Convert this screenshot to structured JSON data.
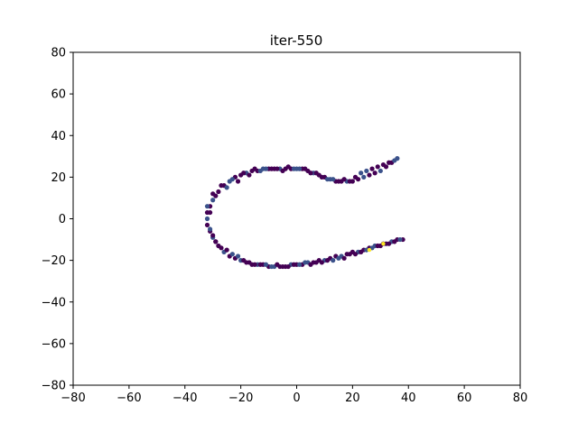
{
  "chart_data": {
    "type": "scatter",
    "title": "iter-550",
    "xlabel": "",
    "ylabel": "",
    "xlim": [
      -80,
      80
    ],
    "ylim": [
      -80,
      80
    ],
    "xticks": [
      -80,
      -60,
      -40,
      -20,
      0,
      20,
      40,
      60,
      80
    ],
    "yticks": [
      -80,
      -60,
      -40,
      -20,
      0,
      20,
      40,
      60,
      80
    ],
    "xtick_labels": [
      "−80",
      "−60",
      "−40",
      "−20",
      "0",
      "20",
      "40",
      "60",
      "80"
    ],
    "ytick_labels": [
      "−80",
      "−60",
      "−40",
      "−20",
      "0",
      "20",
      "40",
      "60",
      "80"
    ],
    "grid": false,
    "legend": "none",
    "colors": {
      "points_dark": "#440154",
      "points_mid": "#3b528b",
      "points_highlight": "#fde725"
    },
    "series": [
      {
        "x": [
          36,
          34,
          32,
          30,
          28,
          26,
          24,
          22,
          20,
          18,
          16,
          14,
          12,
          10,
          8,
          6,
          4,
          2,
          0,
          -2,
          -4,
          -6,
          -8,
          -10,
          -12,
          -14,
          -16,
          -18,
          -20,
          -22,
          -24,
          -26,
          -28,
          -30,
          -31,
          -32,
          -32,
          -32,
          -31,
          -30,
          -29,
          -28,
          -26,
          -24,
          -22,
          -20,
          -18,
          -16,
          -14,
          -12,
          -10,
          -8,
          -6,
          -4,
          -2,
          0,
          2,
          4,
          6,
          8,
          10,
          12,
          14,
          16,
          18,
          20,
          22,
          24,
          26,
          28,
          30,
          32,
          34,
          36,
          38,
          35,
          31,
          27,
          23,
          19,
          15,
          11,
          7,
          3,
          -1,
          -5,
          -9,
          -13,
          -17,
          -21,
          -25,
          -29,
          -31,
          -31,
          -29,
          -25,
          -21,
          -17,
          -13,
          -9,
          -5,
          -1,
          3,
          7,
          11,
          15,
          19,
          23,
          27,
          31,
          35,
          37,
          33,
          29,
          25,
          21,
          17,
          13,
          9,
          5,
          1,
          -3,
          -7,
          -11,
          -15,
          -19,
          -23,
          -27,
          -30,
          -32,
          -30,
          -27,
          -23,
          -19,
          -15,
          -11,
          -7,
          -3,
          1,
          5,
          9,
          13,
          17,
          21,
          25,
          29,
          33
        ],
        "y": [
          29,
          27,
          25,
          23,
          22,
          21,
          20,
          19,
          18,
          18,
          18,
          18,
          19,
          20,
          21,
          22,
          23,
          24,
          24,
          24,
          24,
          24,
          24,
          24,
          24,
          23,
          23,
          22,
          21,
          20,
          18,
          16,
          13,
          9,
          6,
          3,
          0,
          -3,
          -6,
          -9,
          -11,
          -13,
          -16,
          -18,
          -19,
          -20,
          -21,
          -22,
          -22,
          -22,
          -23,
          -23,
          -23,
          -23,
          -22,
          -22,
          -22,
          -21,
          -21,
          -20,
          -20,
          -19,
          -18,
          -18,
          -17,
          -16,
          -16,
          -15,
          -14,
          -13,
          -13,
          -12,
          -11,
          -10,
          -10,
          28,
          26,
          24,
          22,
          18,
          18,
          19,
          22,
          24,
          24,
          23,
          24,
          23,
          21,
          18,
          15,
          11,
          3,
          -5,
          -11,
          -15,
          -18,
          -21,
          -22,
          -23,
          -23,
          -22,
          -21,
          -21,
          -20,
          -19,
          -17,
          -16,
          -14,
          -12,
          -11,
          -10,
          27,
          25,
          23,
          20,
          19,
          19,
          20,
          22,
          24,
          25,
          24,
          24,
          24,
          22,
          19,
          16,
          12,
          6,
          -8,
          -14,
          -17,
          -20,
          -22,
          -22,
          -22,
          -23,
          -22,
          -22,
          -21,
          -20,
          -19,
          -17,
          -15,
          -13,
          -12
        ]
      },
      {
        "x": [
          26,
          31
        ],
        "y": [
          -15,
          -12
        ]
      }
    ]
  }
}
